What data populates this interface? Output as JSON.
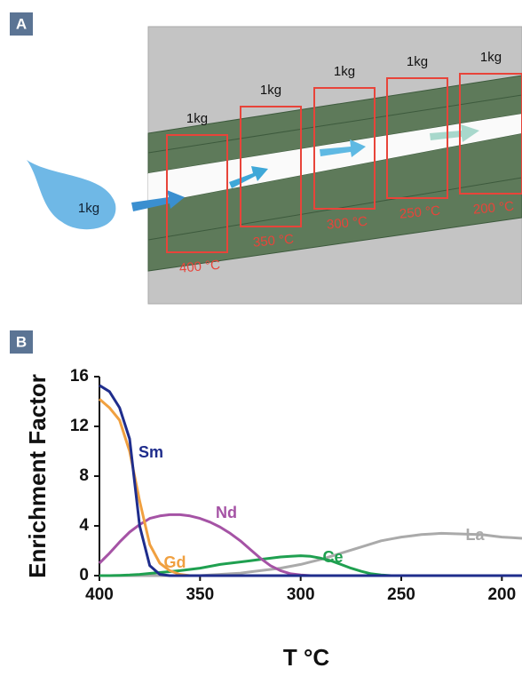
{
  "panel_a": {
    "label": "A",
    "source_label": "1kg",
    "stages": [
      {
        "mass": "1kg",
        "temperature": "400 °C"
      },
      {
        "mass": "1kg",
        "temperature": "350 °C"
      },
      {
        "mass": "1kg",
        "temperature": "300 °C"
      },
      {
        "mass": "1kg",
        "temperature": "250 °C"
      },
      {
        "mass": "1kg",
        "temperature": "200 °C"
      }
    ]
  },
  "panel_b": {
    "label": "B"
  },
  "chart_data": {
    "type": "line",
    "x_label": "T °C",
    "y_label": "Enrichment Factor",
    "x": [
      400,
      395,
      390,
      385,
      380,
      375,
      370,
      365,
      360,
      355,
      350,
      345,
      340,
      335,
      330,
      325,
      320,
      315,
      310,
      305,
      300,
      295,
      290,
      285,
      280,
      275,
      270,
      265,
      260,
      255,
      250,
      245,
      240,
      235,
      230,
      225,
      220,
      215,
      210,
      205,
      200,
      195,
      190
    ],
    "xlim": [
      400,
      190
    ],
    "xticks": [
      400,
      350,
      300,
      250,
      200
    ],
    "ylim": [
      0,
      16
    ],
    "yticks": [
      0,
      4,
      8,
      12,
      16
    ],
    "series": [
      {
        "name": "Sm",
        "color": "#1f2d8c",
        "values": [
          15.3,
          14.8,
          13.5,
          11,
          4,
          0.8,
          0.1,
          0,
          0,
          0,
          0,
          0,
          0,
          0,
          0,
          0,
          0,
          0,
          0,
          0,
          0,
          0,
          0,
          0,
          0,
          0,
          0,
          0,
          0,
          0,
          0,
          0,
          0,
          0,
          0,
          0,
          0,
          0,
          0,
          0,
          0,
          0,
          0
        ]
      },
      {
        "name": "Gd",
        "color": "#f0a040",
        "values": [
          14.2,
          13.5,
          12.5,
          10,
          6,
          2.5,
          1,
          0.4,
          0.1,
          0,
          0,
          0,
          0,
          0,
          0,
          0,
          0,
          0,
          0,
          0,
          0,
          0,
          0,
          0,
          0,
          0,
          0,
          0,
          0,
          0,
          0,
          0,
          0,
          0,
          0,
          0,
          0,
          0,
          0,
          0,
          0,
          0,
          0
        ]
      },
      {
        "name": "Nd",
        "color": "#a553a5",
        "values": [
          1,
          1.8,
          2.7,
          3.5,
          4.1,
          4.6,
          4.8,
          4.9,
          4.9,
          4.8,
          4.6,
          4.3,
          3.9,
          3.4,
          2.8,
          2.1,
          1.4,
          0.8,
          0.4,
          0.15,
          0.05,
          0,
          0,
          0,
          0,
          0,
          0,
          0,
          0,
          0,
          0,
          0,
          0,
          0,
          0,
          0,
          0,
          0,
          0,
          0,
          0,
          0,
          0
        ]
      },
      {
        "name": "Ce",
        "color": "#1fa050",
        "values": [
          0,
          0,
          0.02,
          0.05,
          0.1,
          0.18,
          0.25,
          0.32,
          0.4,
          0.5,
          0.6,
          0.75,
          0.9,
          1,
          1.1,
          1.2,
          1.3,
          1.4,
          1.5,
          1.55,
          1.6,
          1.55,
          1.4,
          1.2,
          0.9,
          0.6,
          0.35,
          0.15,
          0.05,
          0,
          0,
          0,
          0,
          0,
          0,
          0,
          0,
          0,
          0,
          0,
          0,
          0,
          0
        ]
      },
      {
        "name": "La",
        "color": "#aaaaaa",
        "values": [
          0,
          0,
          0,
          0,
          0,
          0,
          0,
          0,
          0,
          0,
          0,
          0.05,
          0.1,
          0.15,
          0.2,
          0.3,
          0.4,
          0.5,
          0.6,
          0.75,
          0.9,
          1.1,
          1.3,
          1.55,
          1.8,
          2.05,
          2.3,
          2.55,
          2.8,
          2.95,
          3.1,
          3.2,
          3.3,
          3.35,
          3.4,
          3.38,
          3.35,
          3.32,
          3.3,
          3.2,
          3.1,
          3.05,
          3
        ]
      }
    ]
  }
}
